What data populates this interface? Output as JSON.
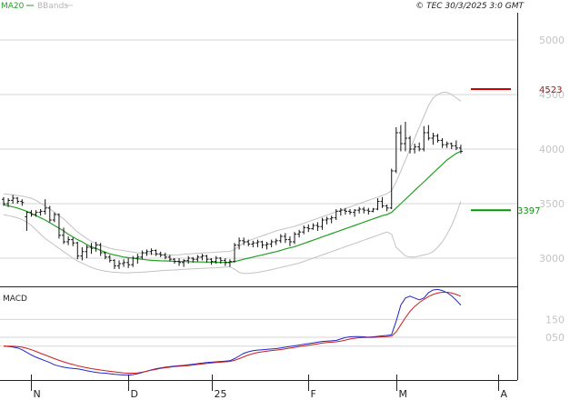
{
  "header": {
    "legend_ma": "MA20",
    "legend_bb": "BBands",
    "stamp": "© TEC 30/3/2025 3:0 GMT"
  },
  "macd_panel": {
    "title": "MACD"
  },
  "chart_data": {
    "type": "ohlc",
    "title": "",
    "ylim": [
      2750,
      5250
    ],
    "y_ticks": [
      "5000",
      "4500",
      "4000",
      "3500",
      "3000"
    ],
    "x_tick_labels": [
      "N",
      "D",
      "25",
      "F",
      "M",
      "A"
    ],
    "x_tick_index": [
      6,
      27,
      45,
      66,
      85,
      107
    ],
    "levels": [
      {
        "label": "4523",
        "value": 4550,
        "color": "#cc0000"
      },
      {
        "label": "3397",
        "value": 3440,
        "color": "#009900"
      }
    ],
    "ohlc": [
      [
        3540,
        3560,
        3480,
        3500
      ],
      [
        3500,
        3550,
        3470,
        3530
      ],
      [
        3530,
        3580,
        3500,
        3550
      ],
      [
        3550,
        3560,
        3500,
        3520
      ],
      [
        3520,
        3540,
        3480,
        3510
      ],
      [
        3380,
        3430,
        3250,
        3420
      ],
      [
        3420,
        3440,
        3380,
        3400
      ],
      [
        3400,
        3440,
        3380,
        3420
      ],
      [
        3420,
        3450,
        3390,
        3430
      ],
      [
        3430,
        3540,
        3400,
        3460
      ],
      [
        3460,
        3480,
        3330,
        3350
      ],
      [
        3350,
        3420,
        3330,
        3400
      ],
      [
        3400,
        3410,
        3180,
        3210
      ],
      [
        3210,
        3280,
        3130,
        3150
      ],
      [
        3150,
        3200,
        3120,
        3170
      ],
      [
        3170,
        3190,
        3110,
        3140
      ],
      [
        3140,
        3150,
        2990,
        3020
      ],
      [
        3020,
        3100,
        2980,
        3060
      ],
      [
        3060,
        3120,
        3000,
        3100
      ],
      [
        3100,
        3140,
        3040,
        3090
      ],
      [
        3090,
        3150,
        3060,
        3120
      ],
      [
        3120,
        3140,
        3020,
        3050
      ],
      [
        3050,
        3060,
        2990,
        3010
      ],
      [
        3010,
        3030,
        2960,
        2980
      ],
      [
        2980,
        2990,
        2900,
        2930
      ],
      [
        2930,
        2980,
        2900,
        2950
      ],
      [
        2950,
        2990,
        2920,
        2960
      ],
      [
        2960,
        3000,
        2910,
        2940
      ],
      [
        2940,
        3020,
        2920,
        3000
      ],
      [
        3000,
        3040,
        2950,
        3010
      ],
      [
        3010,
        3070,
        2990,
        3050
      ],
      [
        3050,
        3080,
        3020,
        3060
      ],
      [
        3060,
        3090,
        3030,
        3070
      ],
      [
        3070,
        3080,
        3020,
        3040
      ],
      [
        3040,
        3060,
        3010,
        3030
      ],
      [
        3030,
        3050,
        2990,
        3010
      ],
      [
        3010,
        3030,
        2970,
        2990
      ],
      [
        2990,
        3000,
        2950,
        2970
      ],
      [
        2970,
        3000,
        2930,
        2960
      ],
      [
        2960,
        2990,
        2920,
        2980
      ],
      [
        2980,
        3020,
        2950,
        3000
      ],
      [
        3000,
        3010,
        2960,
        2990
      ],
      [
        2990,
        3030,
        2970,
        3010
      ],
      [
        3010,
        3040,
        2980,
        3020
      ],
      [
        3020,
        3030,
        2960,
        2990
      ],
      [
        2990,
        3000,
        2940,
        2970
      ],
      [
        2970,
        3020,
        2950,
        3000
      ],
      [
        3000,
        3010,
        2950,
        2980
      ],
      [
        2980,
        3000,
        2930,
        2960
      ],
      [
        2960,
        2990,
        2920,
        2970
      ],
      [
        2970,
        3140,
        2960,
        3120
      ],
      [
        3120,
        3190,
        3080,
        3160
      ],
      [
        3160,
        3190,
        3120,
        3150
      ],
      [
        3150,
        3170,
        3110,
        3130
      ],
      [
        3130,
        3160,
        3100,
        3140
      ],
      [
        3140,
        3170,
        3100,
        3150
      ],
      [
        3150,
        3160,
        3090,
        3120
      ],
      [
        3120,
        3150,
        3080,
        3130
      ],
      [
        3130,
        3170,
        3100,
        3150
      ],
      [
        3150,
        3180,
        3120,
        3160
      ],
      [
        3160,
        3220,
        3140,
        3200
      ],
      [
        3200,
        3230,
        3140,
        3170
      ],
      [
        3170,
        3200,
        3110,
        3150
      ],
      [
        3150,
        3240,
        3130,
        3220
      ],
      [
        3220,
        3260,
        3190,
        3240
      ],
      [
        3240,
        3300,
        3220,
        3280
      ],
      [
        3280,
        3310,
        3240,
        3270
      ],
      [
        3270,
        3320,
        3260,
        3300
      ],
      [
        3300,
        3330,
        3250,
        3290
      ],
      [
        3290,
        3370,
        3260,
        3350
      ],
      [
        3350,
        3380,
        3310,
        3360
      ],
      [
        3360,
        3390,
        3320,
        3370
      ],
      [
        3370,
        3450,
        3350,
        3430
      ],
      [
        3430,
        3460,
        3390,
        3440
      ],
      [
        3440,
        3460,
        3400,
        3430
      ],
      [
        3430,
        3450,
        3400,
        3420
      ],
      [
        3420,
        3450,
        3380,
        3440
      ],
      [
        3440,
        3470,
        3410,
        3450
      ],
      [
        3450,
        3470,
        3410,
        3440
      ],
      [
        3440,
        3460,
        3400,
        3430
      ],
      [
        3430,
        3460,
        3420,
        3450
      ],
      [
        3450,
        3550,
        3440,
        3520
      ],
      [
        3520,
        3560,
        3460,
        3480
      ],
      [
        3480,
        3490,
        3430,
        3460
      ],
      [
        3460,
        3820,
        3450,
        3800
      ],
      [
        3800,
        4200,
        3780,
        4150
      ],
      [
        4150,
        4220,
        3980,
        4050
      ],
      [
        4050,
        4250,
        3980,
        4100
      ],
      [
        4100,
        4120,
        3960,
        4000
      ],
      [
        4000,
        4050,
        3960,
        4020
      ],
      [
        4020,
        4060,
        3980,
        4000
      ],
      [
        4000,
        4210,
        3980,
        4150
      ],
      [
        4150,
        4220,
        4080,
        4100
      ],
      [
        4100,
        4150,
        4040,
        4120
      ],
      [
        4120,
        4140,
        4060,
        4080
      ],
      [
        4080,
        4100,
        4010,
        4040
      ],
      [
        4040,
        4070,
        4010,
        4050
      ],
      [
        4050,
        4060,
        4000,
        4030
      ],
      [
        4030,
        4080,
        3990,
        4010
      ],
      [
        4010,
        4040,
        3960,
        3980
      ]
    ],
    "ma20": [
      3490,
      3480,
      3470,
      3460,
      3445,
      3430,
      3410,
      3390,
      3370,
      3350,
      3325,
      3300,
      3275,
      3250,
      3220,
      3195,
      3170,
      3150,
      3125,
      3105,
      3090,
      3070,
      3055,
      3040,
      3030,
      3020,
      3010,
      3005,
      3000,
      2995,
      2990,
      2985,
      2980,
      2978,
      2976,
      2975,
      2973,
      2971,
      2970,
      2969,
      2968,
      2967,
      2966,
      2965,
      2964,
      2963,
      2962,
      2962,
      2962,
      2962,
      2968,
      2980,
      2990,
      3000,
      3010,
      3020,
      3030,
      3040,
      3050,
      3060,
      3072,
      3085,
      3095,
      3105,
      3120,
      3135,
      3150,
      3165,
      3180,
      3195,
      3210,
      3225,
      3240,
      3255,
      3270,
      3285,
      3300,
      3315,
      3330,
      3345,
      3360,
      3375,
      3390,
      3400,
      3420,
      3460,
      3500,
      3540,
      3580,
      3620,
      3660,
      3700,
      3740,
      3780,
      3820,
      3860,
      3900,
      3930,
      3960,
      3980
    ],
    "bb_upper": [
      3590,
      3585,
      3580,
      3575,
      3570,
      3560,
      3550,
      3530,
      3505,
      3480,
      3450,
      3420,
      3390,
      3360,
      3320,
      3280,
      3240,
      3210,
      3180,
      3155,
      3135,
      3118,
      3105,
      3092,
      3082,
      3075,
      3068,
      3062,
      3056,
      3050,
      3046,
      3042,
      3038,
      3035,
      3032,
      3030,
      3029,
      3030,
      3032,
      3035,
      3038,
      3042,
      3045,
      3048,
      3050,
      3052,
      3055,
      3058,
      3060,
      3062,
      3080,
      3110,
      3140,
      3160,
      3175,
      3190,
      3205,
      3220,
      3235,
      3250,
      3262,
      3272,
      3282,
      3292,
      3305,
      3320,
      3335,
      3350,
      3365,
      3380,
      3395,
      3410,
      3425,
      3440,
      3455,
      3470,
      3485,
      3500,
      3515,
      3530,
      3545,
      3560,
      3575,
      3590,
      3620,
      3700,
      3800,
      3900,
      4000,
      4100,
      4200,
      4300,
      4400,
      4470,
      4500,
      4520,
      4520,
      4500,
      4470,
      4440
    ],
    "bb_lower": [
      3400,
      3390,
      3380,
      3370,
      3355,
      3330,
      3300,
      3260,
      3220,
      3180,
      3150,
      3120,
      3090,
      3060,
      3030,
      3000,
      2975,
      2955,
      2935,
      2915,
      2900,
      2890,
      2882,
      2875,
      2870,
      2868,
      2866,
      2866,
      2868,
      2870,
      2872,
      2875,
      2878,
      2882,
      2885,
      2888,
      2890,
      2892,
      2895,
      2898,
      2900,
      2902,
      2904,
      2906,
      2908,
      2910,
      2912,
      2915,
      2918,
      2920,
      2900,
      2870,
      2860,
      2860,
      2865,
      2870,
      2878,
      2886,
      2895,
      2905,
      2915,
      2925,
      2935,
      2945,
      2955,
      2970,
      2985,
      3000,
      3015,
      3030,
      3045,
      3060,
      3075,
      3090,
      3105,
      3120,
      3135,
      3150,
      3165,
      3180,
      3195,
      3210,
      3225,
      3240,
      3220,
      3100,
      3060,
      3020,
      3010,
      3010,
      3020,
      3030,
      3040,
      3060,
      3100,
      3150,
      3220,
      3300,
      3400,
      3520
    ],
    "macd": {
      "y_ticks": [
        "150",
        "050"
      ],
      "y_tick_values": [
        150,
        50
      ],
      "ylim": [
        -190,
        320
      ],
      "macd_line": [
        0,
        -2,
        -5,
        -10,
        -20,
        -35,
        -50,
        -62,
        -72,
        -82,
        -92,
        -105,
        -112,
        -118,
        -122,
        -125,
        -128,
        -132,
        -138,
        -143,
        -147,
        -150,
        -152,
        -155,
        -158,
        -160,
        -162,
        -163,
        -160,
        -155,
        -148,
        -140,
        -133,
        -127,
        -122,
        -118,
        -115,
        -112,
        -110,
        -108,
        -105,
        -102,
        -98,
        -95,
        -92,
        -90,
        -88,
        -86,
        -84,
        -82,
        -70,
        -55,
        -40,
        -32,
        -26,
        -22,
        -20,
        -18,
        -16,
        -14,
        -10,
        -6,
        -2,
        2,
        6,
        10,
        14,
        18,
        22,
        26,
        28,
        30,
        32,
        40,
        48,
        52,
        54,
        54,
        52,
        50,
        52,
        55,
        58,
        60,
        64,
        140,
        230,
        270,
        280,
        270,
        260,
        270,
        300,
        315,
        318,
        312,
        300,
        282,
        258,
        230
      ],
      "signal_line": [
        0,
        0,
        -1,
        -3,
        -6,
        -12,
        -20,
        -30,
        -40,
        -50,
        -60,
        -70,
        -80,
        -88,
        -96,
        -103,
        -110,
        -116,
        -121,
        -126,
        -130,
        -134,
        -138,
        -141,
        -144,
        -147,
        -150,
        -152,
        -152,
        -150,
        -146,
        -141,
        -135,
        -130,
        -125,
        -121,
        -118,
        -115,
        -113,
        -111,
        -109,
        -106,
        -103,
        -100,
        -97,
        -94,
        -92,
        -90,
        -88,
        -86,
        -80,
        -70,
        -60,
        -50,
        -42,
        -36,
        -32,
        -28,
        -25,
        -22,
        -19,
        -15,
        -11,
        -7,
        -3,
        1,
        5,
        9,
        13,
        17,
        20,
        22,
        24,
        28,
        34,
        40,
        44,
        47,
        48,
        48,
        49,
        50,
        52,
        54,
        56,
        80,
        120,
        160,
        195,
        222,
        244,
        262,
        278,
        290,
        298,
        302,
        302,
        298,
        290,
        280
      ]
    }
  }
}
